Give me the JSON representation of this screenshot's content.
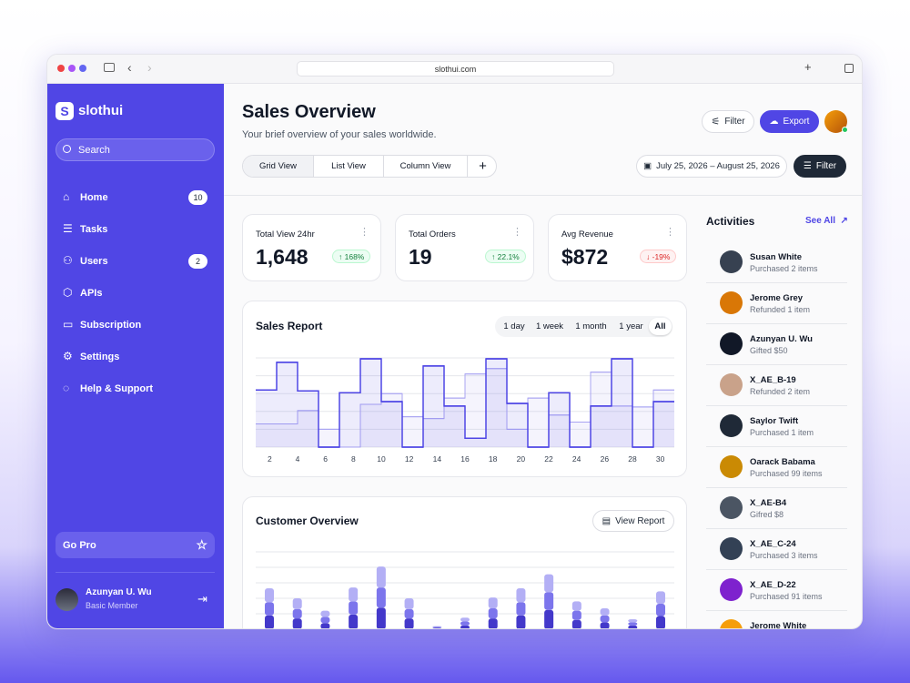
{
  "browser": {
    "url": "slothui.com"
  },
  "sidebar": {
    "brand": "slothui",
    "search": "Search",
    "nav": [
      {
        "label": "Home",
        "badge": "10"
      },
      {
        "label": "Tasks"
      },
      {
        "label": "Users",
        "badge": "2"
      },
      {
        "label": "APIs"
      },
      {
        "label": "Subscription"
      },
      {
        "label": "Settings"
      },
      {
        "label": "Help & Support"
      }
    ],
    "go_pro": "Go Pro",
    "user": {
      "name": "Azunyan U. Wu",
      "role": "Basic Member"
    }
  },
  "header": {
    "title": "Sales Overview",
    "subtitle": "Your brief overview of your sales worldwide.",
    "filter_button": "Filter",
    "export_button": "Export",
    "tabs": [
      "Grid View",
      "List View",
      "Column View"
    ],
    "date_range": "July 25, 2026 – August 25, 2026",
    "filter": "Filter"
  },
  "stats": [
    {
      "label": "Total View 24hr",
      "value": "1,648",
      "change": "168%",
      "trend": "up"
    },
    {
      "label": "Total Orders",
      "value": "19",
      "change": "22.1%",
      "trend": "up"
    },
    {
      "label": "Avg Revenue",
      "value": "$872",
      "change": "-19%",
      "trend": "down"
    }
  ],
  "sales_report": {
    "title": "Sales Report",
    "ranges": [
      "1 day",
      "1 week",
      "1 month",
      "1 year",
      "All"
    ],
    "selected_range": "All",
    "chart": {
      "type": "step",
      "x": [
        1,
        2.5,
        4,
        5.5,
        7,
        8.5,
        10,
        11.5,
        13,
        14.5,
        16,
        17.5,
        19,
        20.5,
        22,
        23.5,
        25,
        26.5,
        28,
        29.5
      ],
      "xlim": [
        1,
        31
      ],
      "xticks": [
        2,
        4,
        6,
        8,
        10,
        12,
        14,
        16,
        18,
        20,
        22,
        24,
        26,
        28,
        30
      ],
      "ylim": [
        0,
        100
      ],
      "series": [
        {
          "color": "#4f46e5",
          "values": [
            64,
            95,
            63,
            0,
            61,
            99,
            51,
            0,
            91,
            46,
            10,
            99,
            49,
            0,
            61,
            0,
            46,
            99,
            0,
            51
          ]
        },
        {
          "color": "#a9a4f2",
          "values": [
            26,
            26,
            41,
            20,
            0,
            48,
            60,
            34,
            32,
            55,
            82,
            88,
            20,
            55,
            36,
            28,
            84,
            46,
            45,
            64
          ]
        }
      ]
    }
  },
  "customer_overview": {
    "title": "Customer Overview",
    "button": "View Report",
    "chart": {
      "type": "stacked_bar",
      "categories": [
        null,
        null,
        null,
        null,
        null,
        null,
        null,
        null,
        null,
        null,
        null,
        null,
        null,
        null,
        null
      ],
      "ylim": [
        0,
        100
      ],
      "series": [
        {
          "color": "#4338ca",
          "values": [
            18,
            14,
            8,
            19,
            28,
            14,
            2,
            5,
            14,
            18,
            25,
            12,
            9,
            5,
            17
          ]
        },
        {
          "color": "#7c75ec",
          "values": [
            17,
            12,
            8,
            17,
            26,
            12,
            1,
            5,
            13,
            17,
            23,
            12,
            9,
            4,
            16
          ]
        },
        {
          "color": "#b3aff5",
          "values": [
            18,
            14,
            8,
            18,
            27,
            14,
            1,
            5,
            14,
            18,
            23,
            12,
            9,
            4,
            16
          ]
        }
      ]
    }
  },
  "activities": {
    "title": "Activities",
    "see_all": "See All",
    "items": [
      {
        "name": "Susan White",
        "detail": "Purchased 2 items"
      },
      {
        "name": "Jerome Grey",
        "detail": "Refunded 1 item"
      },
      {
        "name": "Azunyan U. Wu",
        "detail": "Gifted $50"
      },
      {
        "name": "X_AE_B-19",
        "detail": "Refunded 2 item"
      },
      {
        "name": "Saylor Twift",
        "detail": "Purchased 1 item"
      },
      {
        "name": "Oarack Babama",
        "detail": "Purchased 99 items"
      },
      {
        "name": "X_AE-B4",
        "detail": "Gifred $8"
      },
      {
        "name": "X_AE_C-24",
        "detail": "Purchased 3 items"
      },
      {
        "name": "X_AE_D-22",
        "detail": "Purchased 91 items"
      },
      {
        "name": "Jerome White"
      }
    ]
  }
}
